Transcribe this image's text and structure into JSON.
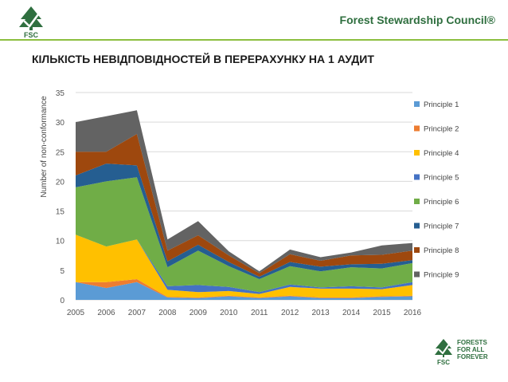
{
  "header": {
    "logo_text": "FSC",
    "brand_title": "Forest Stewardship Council®"
  },
  "page_title": "КІЛЬКІСТЬ НЕВІДПОВІДНОСТЕЙ В ПЕРЕРАХУНКУ НА 1 АУДИТ",
  "footer": {
    "logo_lines": [
      "FORESTS",
      "FOR ALL",
      "FOREVER"
    ],
    "logo_mark": "FSC"
  },
  "colors": {
    "brand_green": "#2f6f3f",
    "accent_lime": "#8cbf3f"
  },
  "chart_data": {
    "type": "area",
    "stacked": true,
    "title": "",
    "xlabel": "",
    "ylabel": "Number of non-conformance",
    "ylim": [
      0,
      35
    ],
    "yticks": [
      0,
      5,
      10,
      15,
      20,
      25,
      30,
      35
    ],
    "grid": true,
    "legend_position": "right",
    "x": [
      "2005",
      "2006",
      "2007",
      "2008",
      "2009",
      "2010",
      "2011",
      "2012",
      "2013",
      "2014",
      "2015",
      "2016"
    ],
    "series": [
      {
        "name": "Principle 1",
        "color": "#5b9bd5",
        "values": [
          3.0,
          2.0,
          3.0,
          0.4,
          0.3,
          0.6,
          0.3,
          0.6,
          0.3,
          0.3,
          0.5,
          0.6
        ]
      },
      {
        "name": "Principle 2",
        "color": "#ed7d31",
        "values": [
          0.0,
          1.0,
          0.5,
          0.1,
          0.1,
          0.1,
          0.1,
          0.1,
          0.1,
          0.1,
          0.1,
          0.1
        ]
      },
      {
        "name": "Principle 4",
        "color": "#ffc000",
        "values": [
          8.0,
          6.0,
          6.7,
          1.2,
          0.9,
          0.8,
          0.6,
          1.5,
          1.5,
          1.5,
          1.2,
          1.8
        ]
      },
      {
        "name": "Principle 5",
        "color": "#4472c4",
        "values": [
          0.0,
          0.0,
          0.0,
          0.6,
          1.2,
          0.7,
          0.3,
          0.4,
          0.2,
          0.4,
          0.3,
          0.5
        ]
      },
      {
        "name": "Principle 6",
        "color": "#70ad47",
        "values": [
          8.0,
          11.0,
          10.5,
          3.2,
          5.8,
          3.5,
          2.2,
          3.1,
          2.7,
          3.2,
          3.2,
          3.2
        ]
      },
      {
        "name": "Principle 7",
        "color": "#255e91",
        "values": [
          2.0,
          3.0,
          2.0,
          1.0,
          1.0,
          0.7,
          0.4,
          0.7,
          0.8,
          0.5,
          0.8,
          0.5
        ]
      },
      {
        "name": "Principle 8",
        "color": "#9e480e",
        "values": [
          4.0,
          2.0,
          5.3,
          1.8,
          1.6,
          1.1,
          0.6,
          1.3,
          1.0,
          1.5,
          1.5,
          1.6
        ]
      },
      {
        "name": "Principle 9",
        "color": "#636363",
        "values": [
          5.0,
          6.0,
          4.0,
          1.9,
          2.4,
          0.7,
          0.3,
          0.8,
          0.6,
          0.5,
          1.6,
          1.3
        ]
      }
    ]
  }
}
